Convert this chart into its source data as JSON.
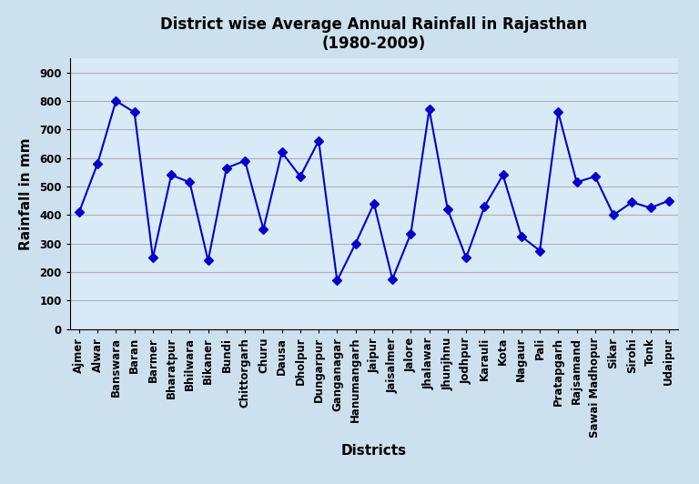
{
  "title": "District wise Average Annual Rainfall in Rajasthan\n(1980-2009)",
  "xlabel": "Districts",
  "ylabel": "Rainfall in mm",
  "districts": [
    "Ajmer",
    "Alwar",
    "Banswara",
    "Baran",
    "Barmer",
    "Bharatpur",
    "Bhilwara",
    "Bikaner",
    "Bundi",
    "Chittorgarh",
    "Churu",
    "Dausa",
    "Dholpur",
    "Dungarpur",
    "Ganganagar",
    "Hanumangarh",
    "Jaipur",
    "Jaisalmer",
    "Jalore",
    "Jhalawar",
    "Jhunjhnu",
    "Jodhpur",
    "Karauli",
    "Kota",
    "Nagaur",
    "Pali",
    "Pratapgarh",
    "Rajsamand",
    "Sawai Madhopur",
    "Sikar",
    "Sirohi",
    "Tonk",
    "Udaipur"
  ],
  "values": [
    410,
    580,
    800,
    760,
    250,
    540,
    515,
    240,
    565,
    590,
    350,
    620,
    535,
    660,
    170,
    300,
    440,
    175,
    335,
    770,
    420,
    250,
    430,
    540,
    325,
    275,
    760,
    515,
    535,
    400,
    445,
    425,
    450
  ],
  "line_color": "#0000CC",
  "marker": "D",
  "marker_size": 5,
  "ylim": [
    0,
    950
  ],
  "yticks": [
    0,
    100,
    200,
    300,
    400,
    500,
    600,
    700,
    800,
    900
  ],
  "background_color": "#cce0ee",
  "plot_bg_color": "#d8eaf5",
  "grid_color": "#b0b0b0",
  "title_fontsize": 12,
  "label_fontsize": 11,
  "tick_fontsize": 8.5
}
